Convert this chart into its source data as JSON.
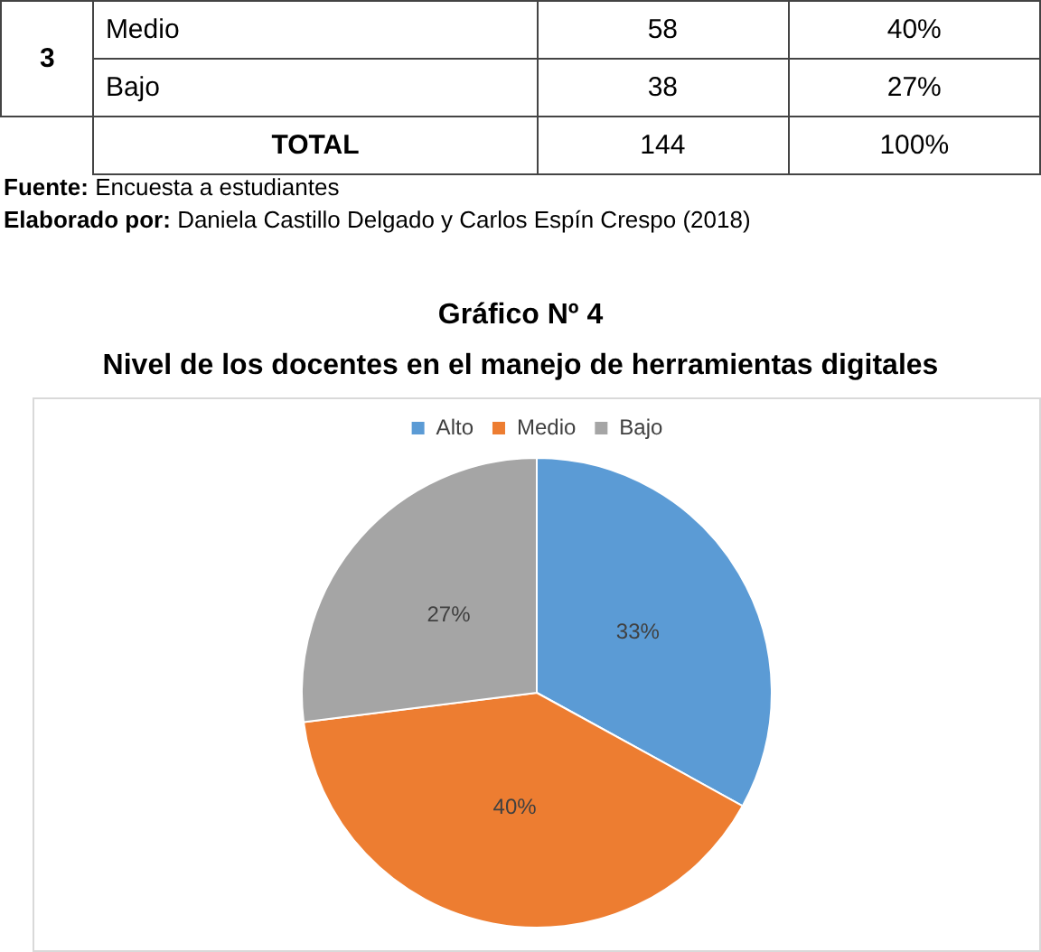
{
  "chart_data": {
    "type": "pie",
    "title": "Gráfico Nº  4",
    "subtitle": "Nivel de los docentes en el manejo de herramientas digitales",
    "categories": [
      "Alto",
      "Medio",
      "Bajo"
    ],
    "values": [
      33,
      40,
      27
    ],
    "colors": [
      "#5b9bd5",
      "#ed7d31",
      "#a5a5a5"
    ],
    "value_labels": [
      "33%",
      "40%",
      "27%"
    ],
    "legend": "top",
    "annotations": [
      "3",
      "Medio",
      "58",
      "40%",
      "Bajo",
      "38",
      "27%",
      "TOTAL",
      "144",
      "100%",
      "Fuente: Encuesta a estudiantes",
      "Elaborado por: Daniela Castillo Delgado y Carlos Espín Crespo (2018)"
    ]
  }
}
